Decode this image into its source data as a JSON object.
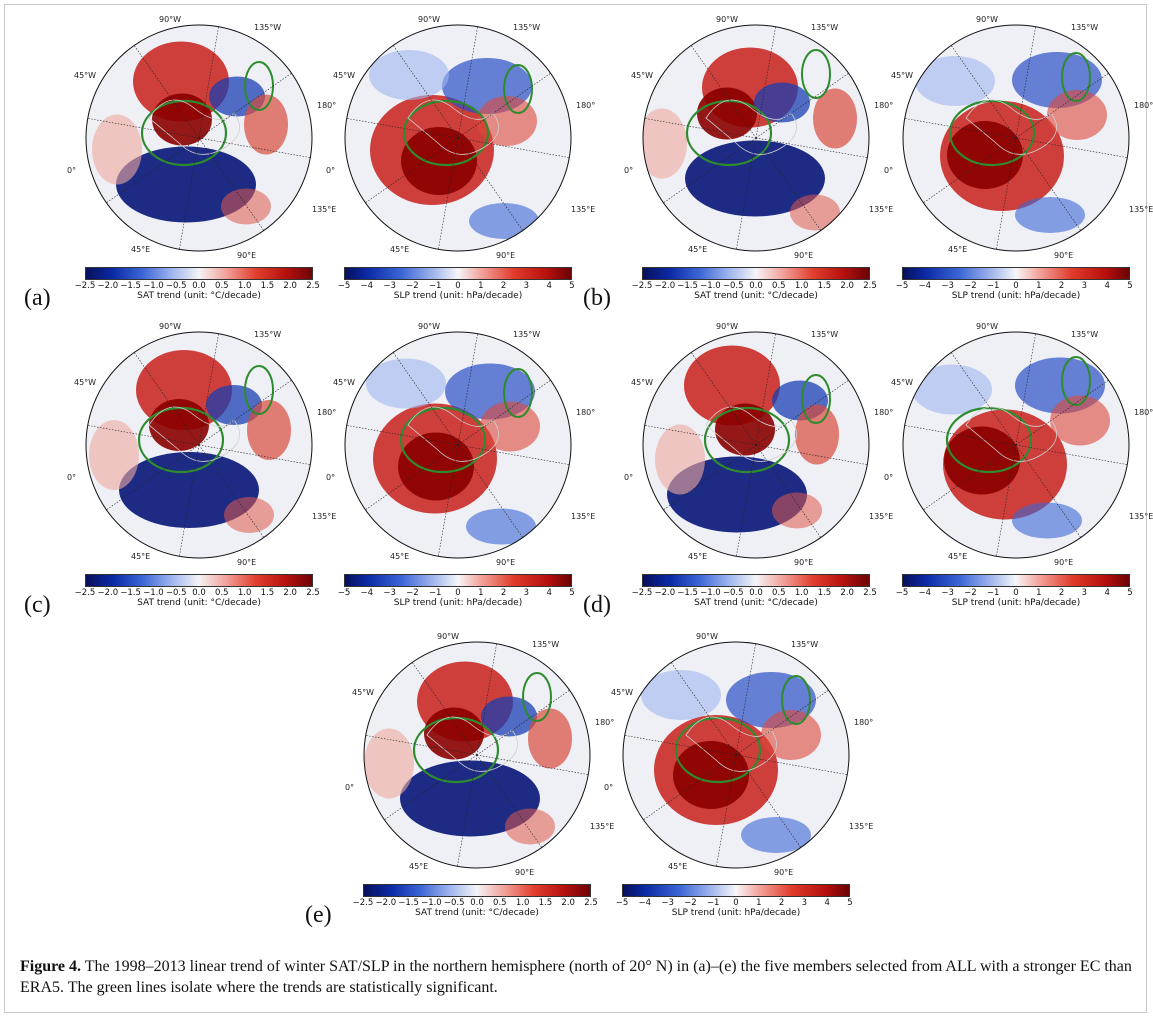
{
  "figure": {
    "caption_label": "Figure 4.",
    "caption_text": "The 1998–2013 linear trend of winter SAT/SLP in the northern hemisphere (north of 20° N) in (a)–(e) the five members selected from ALL with a stronger EC than ERA5. The green lines isolate where the trends are statistically significant."
  },
  "longitude_labels": {
    "w90": "90°W",
    "w135": "135°W",
    "w45": "45°W",
    "e180": "180°",
    "zero": "0°",
    "e135": "135°E",
    "e45": "45°E",
    "e90": "90°E"
  },
  "colorbars": {
    "sat": {
      "label": "SAT trend (unit: °C/decade)",
      "ticks": [
        "−2.5",
        "−2.0",
        "−1.5",
        "−1.0",
        "−0.5",
        "0.0",
        "0.5",
        "1.0",
        "1.5",
        "2.0",
        "2.5"
      ],
      "range": [
        -2.5,
        2.5
      ]
    },
    "slp": {
      "label": "SLP trend (unit: hPa/decade)",
      "ticks": [
        "−5",
        "−4",
        "−3",
        "−2",
        "−1",
        "0",
        "1",
        "2",
        "3",
        "4",
        "5"
      ],
      "range": [
        -5,
        5
      ]
    }
  },
  "rows": [
    {
      "label": "(a)"
    },
    {
      "label": "(b)"
    },
    {
      "label": "(c)"
    },
    {
      "label": "(d)"
    },
    {
      "label": "(e)"
    }
  ],
  "colors": {
    "warm_strong": "#8b0000",
    "cold_strong": "#0b1a7a",
    "significance_contour": "#2e8b2e"
  }
}
